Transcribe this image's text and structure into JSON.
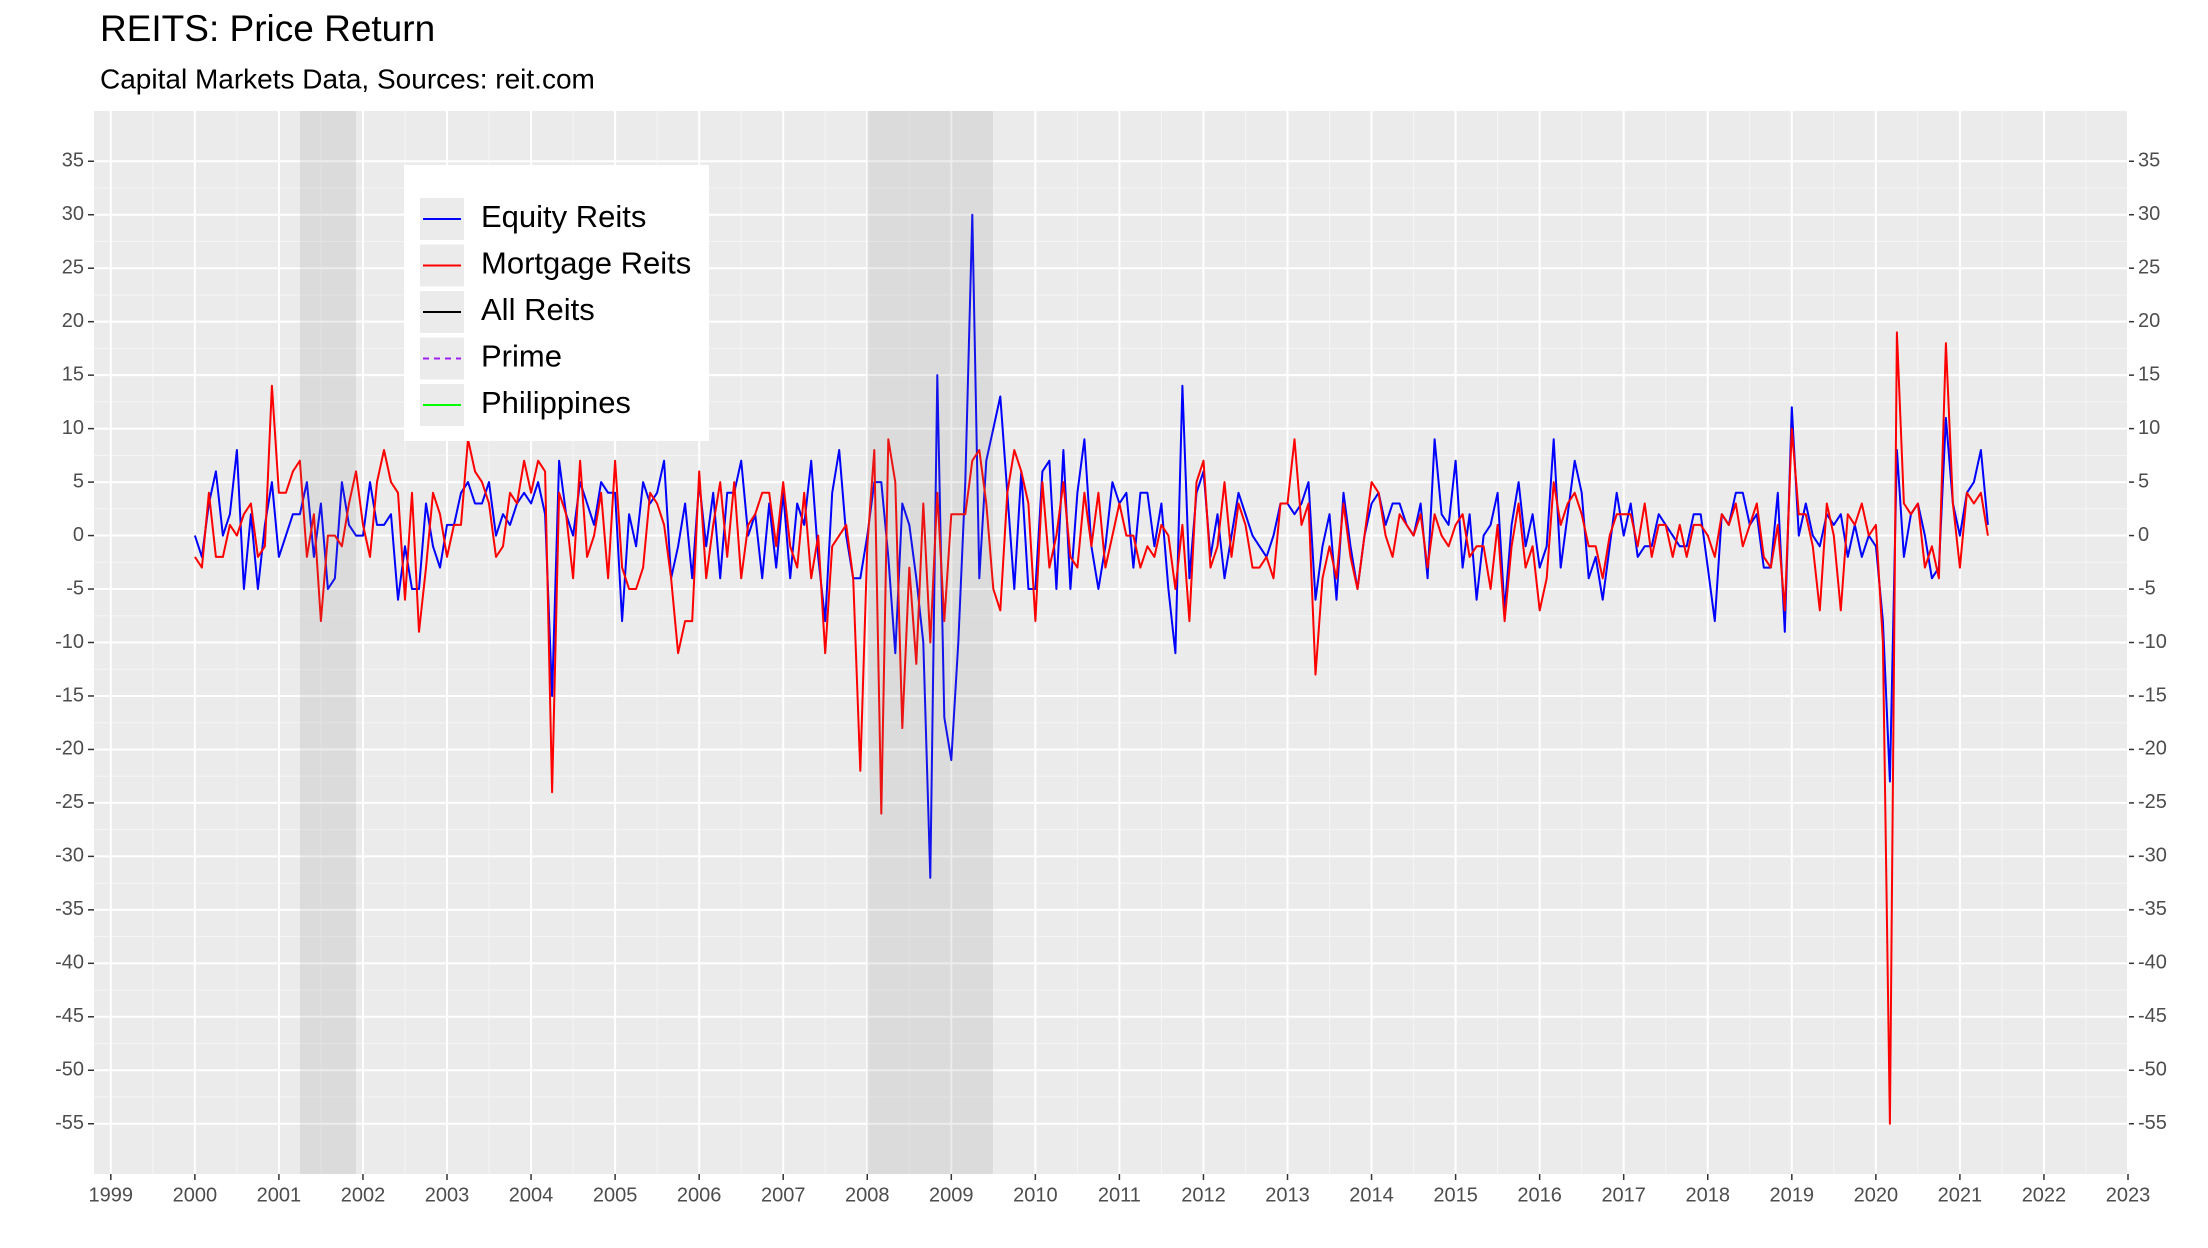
{
  "chart_data": {
    "type": "line",
    "title": "REITS: Price Return",
    "subtitle": "Capital Markets Data, Sources: reit.com",
    "x": [
      "2000-01",
      "2000-02",
      "2000-03",
      "2000-04",
      "2000-05",
      "2000-06",
      "2000-07",
      "2000-08",
      "2000-09",
      "2000-10",
      "2000-11",
      "2000-12",
      "2001-01",
      "2001-02",
      "2001-03",
      "2001-04",
      "2001-05",
      "2001-06",
      "2001-07",
      "2001-08",
      "2001-09",
      "2001-10",
      "2001-11",
      "2001-12",
      "2002-01",
      "2002-02",
      "2002-03",
      "2002-04",
      "2002-05",
      "2002-06",
      "2002-07",
      "2002-08",
      "2002-09",
      "2002-10",
      "2002-11",
      "2002-12",
      "2003-01",
      "2003-02",
      "2003-03",
      "2003-04",
      "2003-05",
      "2003-06",
      "2003-07",
      "2003-08",
      "2003-09",
      "2003-10",
      "2003-11",
      "2003-12",
      "2004-01",
      "2004-02",
      "2004-03",
      "2004-04",
      "2004-05",
      "2004-06",
      "2004-07",
      "2004-08",
      "2004-09",
      "2004-10",
      "2004-11",
      "2004-12",
      "2005-01",
      "2005-02",
      "2005-03",
      "2005-04",
      "2005-05",
      "2005-06",
      "2005-07",
      "2005-08",
      "2005-09",
      "2005-10",
      "2005-11",
      "2005-12",
      "2006-01",
      "2006-02",
      "2006-03",
      "2006-04",
      "2006-05",
      "2006-06",
      "2006-07",
      "2006-08",
      "2006-09",
      "2006-10",
      "2006-11",
      "2006-12",
      "2007-01",
      "2007-02",
      "2007-03",
      "2007-04",
      "2007-05",
      "2007-06",
      "2007-07",
      "2007-08",
      "2007-09",
      "2007-10",
      "2007-11",
      "2007-12",
      "2008-01",
      "2008-02",
      "2008-03",
      "2008-04",
      "2008-05",
      "2008-06",
      "2008-07",
      "2008-08",
      "2008-09",
      "2008-10",
      "2008-11",
      "2008-12",
      "2009-01",
      "2009-02",
      "2009-03",
      "2009-04",
      "2009-05",
      "2009-06",
      "2009-07",
      "2009-08",
      "2009-09",
      "2009-10",
      "2009-11",
      "2009-12",
      "2010-01",
      "2010-02",
      "2010-03",
      "2010-04",
      "2010-05",
      "2010-06",
      "2010-07",
      "2010-08",
      "2010-09",
      "2010-10",
      "2010-11",
      "2010-12",
      "2011-01",
      "2011-02",
      "2011-03",
      "2011-04",
      "2011-05",
      "2011-06",
      "2011-07",
      "2011-08",
      "2011-09",
      "2011-10",
      "2011-11",
      "2011-12",
      "2012-01",
      "2012-02",
      "2012-03",
      "2012-04",
      "2012-05",
      "2012-06",
      "2012-07",
      "2012-08",
      "2012-09",
      "2012-10",
      "2012-11",
      "2012-12",
      "2013-01",
      "2013-02",
      "2013-03",
      "2013-04",
      "2013-05",
      "2013-06",
      "2013-07",
      "2013-08",
      "2013-09",
      "2013-10",
      "2013-11",
      "2013-12",
      "2014-01",
      "2014-02",
      "2014-03",
      "2014-04",
      "2014-05",
      "2014-06",
      "2014-07",
      "2014-08",
      "2014-09",
      "2014-10",
      "2014-11",
      "2014-12",
      "2015-01",
      "2015-02",
      "2015-03",
      "2015-04",
      "2015-05",
      "2015-06",
      "2015-07",
      "2015-08",
      "2015-09",
      "2015-10",
      "2015-11",
      "2015-12",
      "2016-01",
      "2016-02",
      "2016-03",
      "2016-04",
      "2016-05",
      "2016-06",
      "2016-07",
      "2016-08",
      "2016-09",
      "2016-10",
      "2016-11",
      "2016-12",
      "2017-01",
      "2017-02",
      "2017-03",
      "2017-04",
      "2017-05",
      "2017-06",
      "2017-07",
      "2017-08",
      "2017-09",
      "2017-10",
      "2017-11",
      "2017-12",
      "2018-01",
      "2018-02",
      "2018-03",
      "2018-04",
      "2018-05",
      "2018-06",
      "2018-07",
      "2018-08",
      "2018-09",
      "2018-10",
      "2018-11",
      "2018-12",
      "2019-01",
      "2019-02",
      "2019-03",
      "2019-04",
      "2019-05",
      "2019-06",
      "2019-07",
      "2019-08",
      "2019-09",
      "2019-10",
      "2019-11",
      "2019-12",
      "2020-01",
      "2020-02",
      "2020-03",
      "2020-04",
      "2020-05",
      "2020-06",
      "2020-07",
      "2020-08",
      "2020-09",
      "2020-10",
      "2020-11",
      "2020-12",
      "2021-01",
      "2021-02",
      "2021-03",
      "2021-04",
      "2021-05"
    ],
    "series": [
      {
        "name": "Equity Reits",
        "color": "#0000ff",
        "values": [
          0,
          -2,
          3,
          6,
          0,
          2,
          8,
          -5,
          2,
          -5,
          1,
          5,
          -2,
          0,
          2,
          2,
          5,
          -2,
          3,
          -5,
          -4,
          5,
          1,
          0,
          0,
          5,
          1,
          1,
          2,
          -6,
          -1,
          -5,
          -5,
          3,
          -1,
          -3,
          1,
          1,
          4,
          5,
          3,
          3,
          5,
          0,
          2,
          1,
          3,
          4,
          3,
          5,
          2,
          -15,
          7,
          2,
          0,
          5,
          3,
          1,
          5,
          4,
          4,
          -8,
          2,
          -1,
          5,
          3,
          4,
          7,
          -4,
          -1,
          3,
          -4,
          5,
          -1,
          4,
          -4,
          4,
          4,
          7,
          0,
          2,
          -4,
          3,
          -3,
          4,
          -4,
          3,
          1,
          7,
          -2,
          -8,
          4,
          8,
          0,
          -4,
          -4,
          0,
          5,
          5,
          -2,
          -11,
          3,
          1,
          -4,
          -10,
          -32,
          15,
          -17,
          -21,
          -10,
          5,
          30,
          -4,
          7,
          10,
          13,
          4,
          -5,
          6,
          -5,
          -5,
          6,
          7,
          -5,
          8,
          -5,
          4,
          9,
          -1,
          -5,
          -1,
          5,
          3,
          4,
          -3,
          4,
          4,
          -1,
          3,
          -5,
          -11,
          14,
          -4,
          4,
          6,
          -2,
          2,
          -4,
          0,
          4,
          2,
          0,
          -1,
          -2,
          0,
          3,
          3,
          2,
          3,
          5,
          -6,
          -1,
          2,
          -6,
          4,
          -1,
          -5,
          0,
          3,
          4,
          1,
          3,
          3,
          1,
          0,
          3,
          -4,
          9,
          2,
          1,
          7,
          -3,
          2,
          -6,
          0,
          1,
          4,
          -7,
          1,
          5,
          -1,
          2,
          -3,
          -1,
          9,
          -3,
          2,
          7,
          4,
          -4,
          -2,
          -6,
          -1,
          4,
          0,
          3,
          -2,
          -1,
          -1,
          2,
          1,
          0,
          -1,
          -1,
          2,
          2,
          -3,
          -8,
          2,
          1,
          4,
          4,
          1,
          2,
          -3,
          -3,
          4,
          -9,
          12,
          0,
          3,
          0,
          -1,
          2,
          1,
          2,
          -2,
          1,
          -2,
          0,
          -1,
          -8,
          -23,
          8,
          -2,
          2,
          3,
          0,
          -4,
          -3,
          11,
          3,
          0,
          4,
          5,
          8,
          1
        ]
      },
      {
        "name": "Mortgage Reits",
        "color": "#ff0000",
        "values": [
          -2,
          -3,
          4,
          -2,
          -2,
          1,
          0,
          2,
          3,
          -2,
          -1,
          14,
          4,
          4,
          6,
          7,
          -2,
          2,
          -8,
          0,
          0,
          -1,
          3,
          6,
          1,
          -2,
          5,
          8,
          5,
          4,
          -6,
          4,
          -9,
          -3,
          4,
          2,
          -2,
          1,
          1,
          9,
          6,
          5,
          3,
          -2,
          -1,
          4,
          3,
          7,
          4,
          7,
          6,
          -24,
          4,
          2,
          -4,
          7,
          -2,
          0,
          4,
          -4,
          7,
          -3,
          -5,
          -5,
          -3,
          4,
          3,
          1,
          -4,
          -11,
          -8,
          -8,
          6,
          -4,
          1,
          5,
          -2,
          5,
          -4,
          1,
          2,
          4,
          4,
          -1,
          5,
          -1,
          -3,
          4,
          -4,
          0,
          -11,
          -1,
          0,
          1,
          -4,
          -22,
          -1,
          8,
          -26,
          9,
          5,
          -18,
          -3,
          -12,
          3,
          -10,
          4,
          -8,
          2,
          2,
          2,
          7,
          8,
          3,
          -5,
          -7,
          4,
          8,
          6,
          3,
          -8,
          5,
          -3,
          0,
          5,
          -2,
          -3,
          4,
          -1,
          4,
          -3,
          0,
          3,
          0,
          0,
          -3,
          -1,
          -2,
          1,
          0,
          -5,
          1,
          -8,
          5,
          7,
          -3,
          -1,
          5,
          -2,
          3,
          1,
          -3,
          -3,
          -2,
          -4,
          3,
          3,
          9,
          1,
          3,
          -13,
          -4,
          -1,
          -4,
          3,
          -2,
          -5,
          0,
          5,
          4,
          0,
          -2,
          2,
          1,
          0,
          2,
          -3,
          2,
          0,
          -1,
          1,
          2,
          -2,
          -1,
          -1,
          -5,
          1,
          -8,
          -1,
          3,
          -3,
          -1,
          -7,
          -4,
          5,
          1,
          3,
          4,
          2,
          -1,
          -1,
          -4,
          0,
          2,
          2,
          2,
          -1,
          3,
          -2,
          1,
          1,
          -2,
          1,
          -2,
          1,
          1,
          0,
          -2,
          2,
          1,
          3,
          -1,
          1,
          3,
          -2,
          -3,
          1,
          -7,
          10,
          2,
          2,
          -1,
          -7,
          3,
          0,
          -7,
          2,
          1,
          3,
          0,
          1,
          -10,
          -55,
          19,
          3,
          2,
          3,
          -3,
          -1,
          -4,
          18,
          3,
          -3,
          4,
          3,
          4,
          0
        ]
      }
    ],
    "legend_entries": [
      {
        "name": "All Reits",
        "color": "#000000"
      },
      {
        "name": "Prime",
        "color": "#a020f0",
        "dashed": true
      },
      {
        "name": "Philippines",
        "color": "#00ff00"
      }
    ],
    "legend": "top-left",
    "shaded_periods": [
      [
        "2001-04",
        "2001-12"
      ],
      [
        "2008-01",
        "2009-07"
      ]
    ],
    "shade_color": "#808080",
    "shade_opacity": 0.15,
    "xlim": [
      1998.8,
      2023.0
    ],
    "xticks": [
      1999,
      2000,
      2001,
      2002,
      2003,
      2004,
      2005,
      2006,
      2007,
      2008,
      2009,
      2010,
      2011,
      2012,
      2013,
      2014,
      2015,
      2016,
      2017,
      2018,
      2019,
      2020,
      2021,
      2022,
      2023
    ],
    "ylim": [
      -59.7,
      39.7
    ],
    "yticks": [
      -55,
      -50,
      -45,
      -40,
      -35,
      -30,
      -25,
      -20,
      -15,
      -10,
      -5,
      0,
      5,
      10,
      15,
      20,
      25,
      30,
      35
    ],
    "secondary_y_axis": true,
    "grid": true
  }
}
